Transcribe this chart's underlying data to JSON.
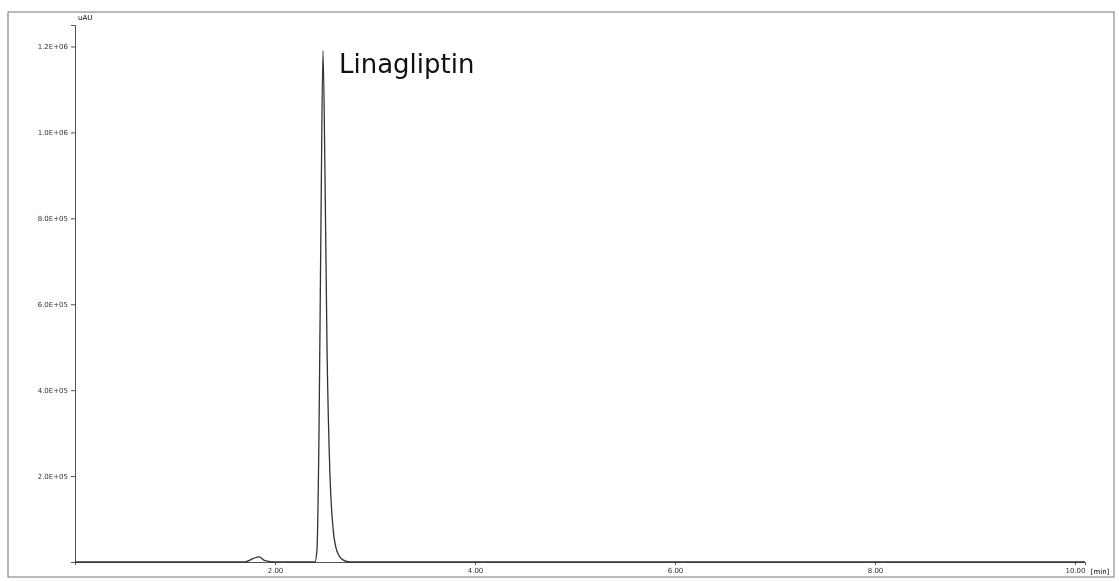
{
  "chart_data": {
    "type": "line",
    "xlabel": "[min]",
    "ylabel": "uAU",
    "annotations": [
      {
        "text": "Linagliptin",
        "x": 2.48,
        "y": 1190000
      }
    ],
    "series": [
      {
        "color": "#333333",
        "x": [
          0,
          1.7,
          1.78,
          1.84,
          1.9,
          2.0,
          2.4,
          2.42,
          2.44,
          2.46,
          2.48,
          2.5,
          2.52,
          2.55,
          2.58,
          2.62,
          2.68,
          2.75,
          10.1
        ],
        "values": [
          0,
          0,
          8000,
          12000,
          3000,
          0,
          0,
          30000,
          300000,
          800000,
          1190000,
          900000,
          500000,
          200000,
          80000,
          25000,
          5000,
          0,
          0
        ]
      }
    ],
    "xlim": [
      0,
      10.1
    ],
    "ylim": [
      0,
      1250000
    ],
    "xticks": [
      {
        "value": 2,
        "label": "2.00"
      },
      {
        "value": 4,
        "label": "4.00"
      },
      {
        "value": 6,
        "label": "6.00"
      },
      {
        "value": 8,
        "label": "8.00"
      },
      {
        "value": 10,
        "label": "10.00"
      }
    ],
    "yticks": [
      {
        "value": 200000,
        "label": "2.0E+05"
      },
      {
        "value": 400000,
        "label": "4.0E+05"
      },
      {
        "value": 600000,
        "label": "6.0E+05"
      },
      {
        "value": 800000,
        "label": "8.0E+05"
      },
      {
        "value": 1000000,
        "label": "1.0E+06"
      },
      {
        "value": 1200000,
        "label": "1.2E+06"
      }
    ],
    "grid": false,
    "marker": "none",
    "line_style": "solid"
  }
}
